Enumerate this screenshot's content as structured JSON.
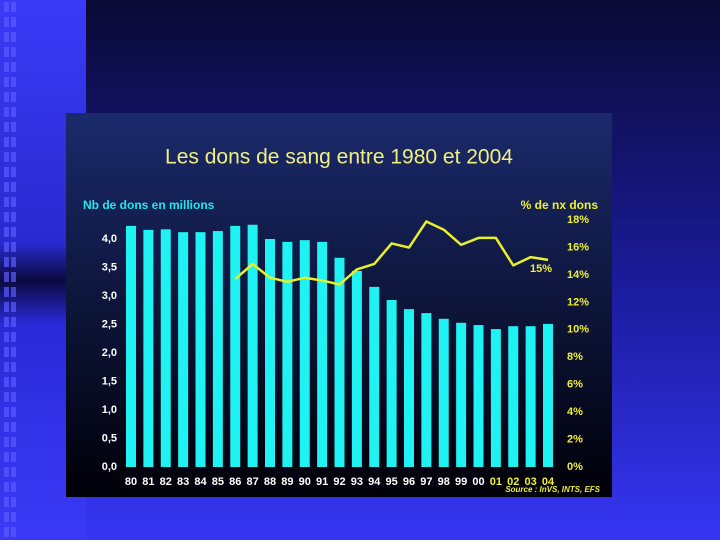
{
  "chart_data": {
    "type": "bar-line",
    "title": "Les dons de sang entre 1980 et 2004",
    "y_label": "Nb de dons en millions",
    "y2_label": "% de nx dons",
    "annotation": "15%",
    "source": "Source : InVS, INTS, EFS",
    "categories": [
      "80",
      "81",
      "82",
      "83",
      "84",
      "85",
      "86",
      "87",
      "88",
      "89",
      "90",
      "91",
      "92",
      "93",
      "94",
      "95",
      "96",
      "97",
      "98",
      "99",
      "00",
      "01",
      "02",
      "03",
      "04"
    ],
    "category_label_colors": [
      "#ffffff",
      "#ffffff",
      "#ffffff",
      "#ffffff",
      "#ffffff",
      "#ffffff",
      "#ffffff",
      "#ffffff",
      "#ffffff",
      "#ffffff",
      "#ffffff",
      "#ffffff",
      "#ffffff",
      "#ffffff",
      "#ffffff",
      "#ffffff",
      "#ffffff",
      "#ffffff",
      "#ffffff",
      "#ffffff",
      "#ffffff",
      "#f0f030",
      "#f0f030",
      "#f0f030",
      "#f0f030"
    ],
    "series": [
      {
        "type": "bar",
        "color": "#1ef2f2",
        "values": [
          4.23,
          4.16,
          4.17,
          4.12,
          4.12,
          4.14,
          4.23,
          4.25,
          4.0,
          3.95,
          3.98,
          3.95,
          3.67,
          3.44,
          3.16,
          2.93,
          2.77,
          2.7,
          2.6,
          2.53,
          2.49,
          2.42,
          2.47,
          2.47,
          2.51
        ]
      },
      {
        "type": "line",
        "axis": "y2",
        "color": "#e8f028",
        "values": [
          null,
          null,
          null,
          null,
          null,
          null,
          13.7,
          14.8,
          13.8,
          13.5,
          13.8,
          13.6,
          13.3,
          14.4,
          14.8,
          16.3,
          16.0,
          17.9,
          17.3,
          16.2,
          16.7,
          16.7,
          14.7,
          15.3,
          15.1
        ]
      }
    ],
    "ylim": [
      0,
      4.5
    ],
    "yticks": [
      {
        "value": 0,
        "label": "0,0"
      },
      {
        "value": 0.5,
        "label": "0,5"
      },
      {
        "value": 1,
        "label": "1,0"
      },
      {
        "value": 1.5,
        "label": "1,5"
      },
      {
        "value": 2,
        "label": "2,0"
      },
      {
        "value": 2.5,
        "label": "2,5"
      },
      {
        "value": 3,
        "label": "3,0"
      },
      {
        "value": 3.5,
        "label": "3,5"
      },
      {
        "value": 4,
        "label": "4,0"
      }
    ],
    "y2lim": [
      0,
      18.7
    ],
    "y2ticks": [
      {
        "value": 0,
        "label": "0%"
      },
      {
        "value": 2,
        "label": "2%"
      },
      {
        "value": 4,
        "label": "4%"
      },
      {
        "value": 6,
        "label": "6%"
      },
      {
        "value": 8,
        "label": "8%"
      },
      {
        "value": 10,
        "label": "10%"
      },
      {
        "value": 12,
        "label": "12%"
      },
      {
        "value": 14,
        "label": "14%"
      },
      {
        "value": 16,
        "label": "16%"
      },
      {
        "value": 18,
        "label": "18%"
      }
    ]
  }
}
